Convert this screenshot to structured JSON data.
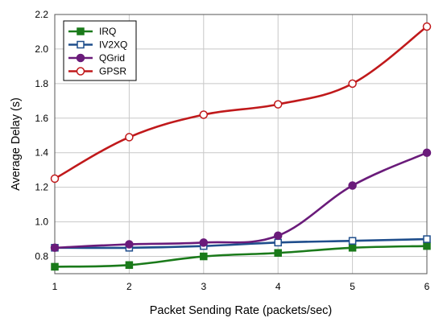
{
  "chart_data": {
    "type": "line",
    "xlabel": "Packet Sending Rate (packets/sec)",
    "ylabel": "Average Delay (s)",
    "x": [
      1,
      2,
      3,
      4,
      5,
      6
    ],
    "xticks": [
      "1",
      "2",
      "3",
      "4",
      "5",
      "6"
    ],
    "yticks": [
      "0.8",
      "1.0",
      "1.2",
      "1.4",
      "1.6",
      "1.8",
      "2.0",
      "2.2"
    ],
    "xlim": [
      1,
      6
    ],
    "ylim": [
      0.7,
      2.2
    ],
    "grid": true,
    "legend_position": "top-left",
    "series": [
      {
        "name": "IRQ",
        "color": "#1a7a1a",
        "marker": "square",
        "filled": true,
        "values": [
          0.74,
          0.75,
          0.8,
          0.82,
          0.85,
          0.86
        ]
      },
      {
        "name": "IV2XQ",
        "color": "#1f4e8c",
        "marker": "square",
        "filled": false,
        "values": [
          0.85,
          0.85,
          0.86,
          0.88,
          0.89,
          0.9
        ]
      },
      {
        "name": "QGrid",
        "color": "#6a1b7a",
        "marker": "circle",
        "filled": true,
        "values": [
          0.85,
          0.87,
          0.88,
          0.92,
          1.21,
          1.4
        ]
      },
      {
        "name": "GPSR",
        "color": "#c0191b",
        "marker": "circle",
        "filled": false,
        "values": [
          1.25,
          1.49,
          1.62,
          1.68,
          1.8,
          2.13
        ]
      }
    ]
  }
}
